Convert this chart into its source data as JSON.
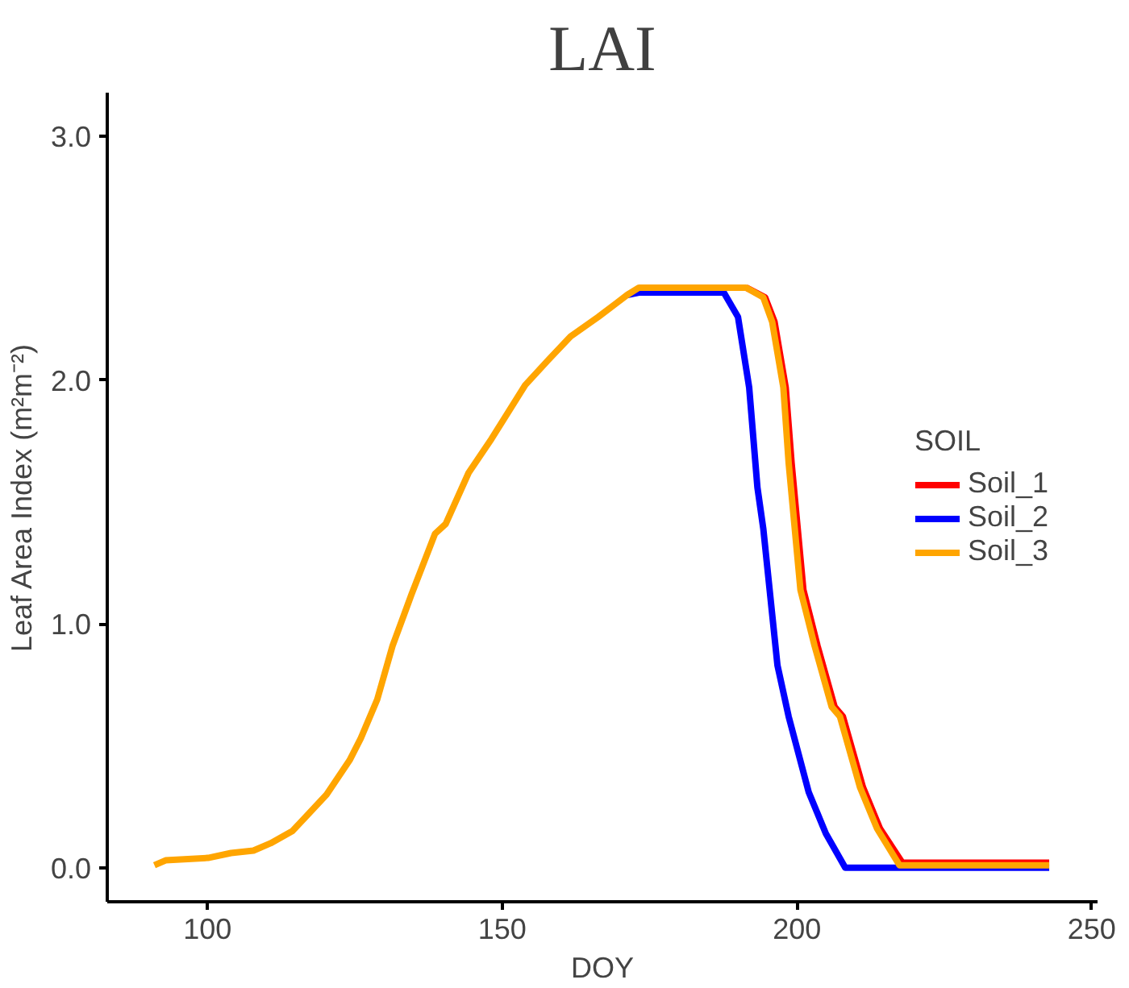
{
  "chart_data": {
    "type": "line",
    "title": "LAI",
    "xlabel": "DOY",
    "ylabel": "Leaf Area Index (m²m⁻²)",
    "legend_title": "SOIL",
    "xlim": [
      83,
      251
    ],
    "ylim": [
      -0.14,
      3.18
    ],
    "xticks": [
      100,
      150,
      200,
      250
    ],
    "yticks": [
      {
        "value": 0,
        "label": "0.0"
      },
      {
        "value": 1,
        "label": "1.0"
      },
      {
        "value": 2,
        "label": "2.0"
      },
      {
        "value": 3,
        "label": "3.0"
      }
    ],
    "grid": false,
    "legend": "right",
    "line_style": "solid",
    "marker": "none",
    "series": [
      {
        "name": "Soil_1",
        "color": "#ff0000",
        "x": [
          191.4,
          194.6,
          196.2,
          198.1,
          199.1,
          201.1,
          203.5,
          206.4,
          207.8,
          211.2,
          214.1,
          217.9,
          242.8
        ],
        "values": [
          2.38,
          2.34,
          2.24,
          1.97,
          1.66,
          1.14,
          0.91,
          0.66,
          0.62,
          0.33,
          0.16,
          0.02,
          0.02
        ]
      },
      {
        "name": "Soil_2",
        "color": "#0000ff",
        "x": [
          171.2,
          173.2,
          187.6,
          190,
          191.9,
          193.3,
          194.3,
          196.7,
          198.6,
          202,
          204.9,
          208.2,
          242.8
        ],
        "values": [
          2.35,
          2.36,
          2.36,
          2.26,
          1.97,
          1.56,
          1.39,
          0.83,
          0.62,
          0.31,
          0.14,
          0.0,
          0.0
        ]
      },
      {
        "name": "Soil_3",
        "color": "#ffa500",
        "x": [
          91,
          92.9,
          100.1,
          104,
          107.8,
          110.7,
          114.4,
          117.9,
          120.2,
          124.1,
          126,
          128.8,
          131.4,
          134.6,
          138.6,
          140.4,
          144.3,
          148.2,
          153.9,
          157.7,
          161.6,
          166.3,
          171.2,
          173.2,
          191.4,
          194.3,
          195.8,
          197.7,
          198.6,
          200.6,
          203,
          205.9,
          207.3,
          210.7,
          213.6,
          217.4,
          242.8
        ],
        "values": [
          0.01,
          0.03,
          0.04,
          0.06,
          0.07,
          0.1,
          0.15,
          0.24,
          0.3,
          0.44,
          0.53,
          0.69,
          0.91,
          1.12,
          1.37,
          1.41,
          1.62,
          1.76,
          1.98,
          2.08,
          2.18,
          2.26,
          2.35,
          2.38,
          2.38,
          2.34,
          2.24,
          1.97,
          1.66,
          1.14,
          0.91,
          0.66,
          0.62,
          0.33,
          0.16,
          0.01,
          0.01
        ]
      }
    ]
  }
}
